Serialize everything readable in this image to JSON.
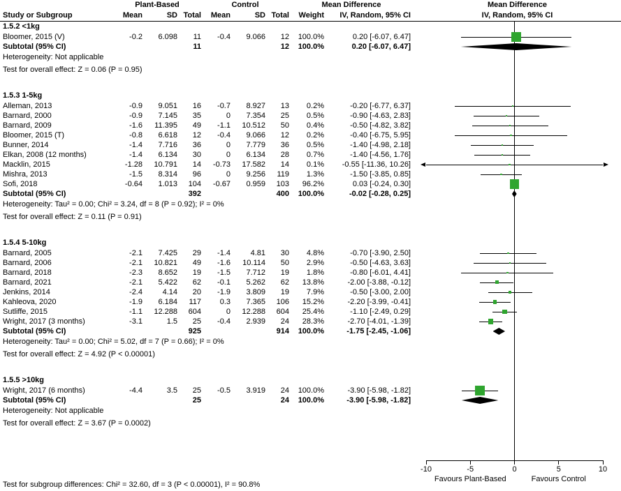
{
  "header": {
    "col_study": "Study or Subgroup",
    "group1": "Plant-Based",
    "group2": "Control",
    "col_mean": "Mean",
    "col_sd": "SD",
    "col_total": "Total",
    "col_weight": "Weight",
    "md_label": "Mean Difference",
    "ci_method": "IV, Random, 95% CI"
  },
  "labels": {
    "subtotal": "Subtotal (95% CI)"
  },
  "axis": {
    "tick_labels": [
      "-10",
      "-5",
      "0",
      "5",
      "10"
    ],
    "left_label": "Favours Plant-Based",
    "right_label": "Favours Control"
  },
  "footer": {
    "subgroup_test": "Test for subgroup differences: Chi² = 32.60, df = 3 (P < 0.00001), I² = 90.8%"
  },
  "colors": {
    "marker": "#2FA52F",
    "diamond": "#000000",
    "line": "#000000"
  },
  "chart_data": {
    "type": "forest",
    "effect_measure": "Mean Difference",
    "model": "IV, Random, 95% CI",
    "xlim": [
      -10,
      10
    ],
    "ticks": [
      -10,
      -5,
      0,
      5,
      10
    ],
    "groups": [
      {
        "label": "1.5.2 <1kg",
        "studies": [
          {
            "name": "Bloomer, 2015 (V)",
            "mean_t": "-0.2",
            "sd_t": "6.098",
            "n_t": "11",
            "mean_c": "-0.4",
            "sd_c": "9.066",
            "n_c": "12",
            "weight": "100.0%",
            "ci_text": "0.20 [-6.07, 6.47]",
            "est": 0.2,
            "lo": -6.07,
            "hi": 6.47
          }
        ],
        "subtotal": {
          "n_t": "11",
          "n_c": "12",
          "weight": "100.0%",
          "ci_text": "0.20 [-6.07, 6.47]",
          "est": 0.2,
          "lo": -6.07,
          "hi": 6.47
        },
        "heterogeneity": "Heterogeneity: Not applicable",
        "overall_effect": "Test for overall effect: Z = 0.06 (P = 0.95)"
      },
      {
        "label": "1.5.3 1-5kg",
        "studies": [
          {
            "name": "Alleman, 2013",
            "mean_t": "-0.9",
            "sd_t": "9.051",
            "n_t": "16",
            "mean_c": "-0.7",
            "sd_c": "8.927",
            "n_c": "13",
            "weight": "0.2%",
            "ci_text": "-0.20 [-6.77, 6.37]",
            "est": -0.2,
            "lo": -6.77,
            "hi": 6.37
          },
          {
            "name": "Barnard, 2000",
            "mean_t": "-0.9",
            "sd_t": "7.145",
            "n_t": "35",
            "mean_c": "0",
            "sd_c": "7.354",
            "n_c": "25",
            "weight": "0.5%",
            "ci_text": "-0.90 [-4.63, 2.83]",
            "est": -0.9,
            "lo": -4.63,
            "hi": 2.83
          },
          {
            "name": "Barnard, 2009",
            "mean_t": "-1.6",
            "sd_t": "11.395",
            "n_t": "49",
            "mean_c": "-1.1",
            "sd_c": "10.512",
            "n_c": "50",
            "weight": "0.4%",
            "ci_text": "-0.50 [-4.82, 3.82]",
            "est": -0.5,
            "lo": -4.82,
            "hi": 3.82
          },
          {
            "name": "Bloomer, 2015 (T)",
            "mean_t": "-0.8",
            "sd_t": "6.618",
            "n_t": "12",
            "mean_c": "-0.4",
            "sd_c": "9.066",
            "n_c": "12",
            "weight": "0.2%",
            "ci_text": "-0.40 [-6.75, 5.95]",
            "est": -0.4,
            "lo": -6.75,
            "hi": 5.95
          },
          {
            "name": "Bunner, 2014",
            "mean_t": "-1.4",
            "sd_t": "7.716",
            "n_t": "36",
            "mean_c": "0",
            "sd_c": "7.779",
            "n_c": "36",
            "weight": "0.5%",
            "ci_text": "-1.40 [-4.98, 2.18]",
            "est": -1.4,
            "lo": -4.98,
            "hi": 2.18
          },
          {
            "name": "Elkan, 2008 (12 months)",
            "mean_t": "-1.4",
            "sd_t": "6.134",
            "n_t": "30",
            "mean_c": "0",
            "sd_c": "6.134",
            "n_c": "28",
            "weight": "0.7%",
            "ci_text": "-1.40 [-4.56, 1.76]",
            "est": -1.4,
            "lo": -4.56,
            "hi": 1.76
          },
          {
            "name": "Macklin, 2015",
            "mean_t": "-1.28",
            "sd_t": "10.791",
            "n_t": "14",
            "mean_c": "-0.73",
            "sd_c": "17.582",
            "n_c": "14",
            "weight": "0.1%",
            "ci_text": "-0.55 [-11.36, 10.26]",
            "est": -0.55,
            "lo": -11.36,
            "hi": 10.26
          },
          {
            "name": "Mishra, 2013",
            "mean_t": "-1.5",
            "sd_t": "8.314",
            "n_t": "96",
            "mean_c": "0",
            "sd_c": "9.256",
            "n_c": "119",
            "weight": "1.3%",
            "ci_text": "-1.50 [-3.85, 0.85]",
            "est": -1.5,
            "lo": -3.85,
            "hi": 0.85
          },
          {
            "name": "Sofi, 2018",
            "mean_t": "-0.64",
            "sd_t": "1.013",
            "n_t": "104",
            "mean_c": "-0.67",
            "sd_c": "0.959",
            "n_c": "103",
            "weight": "96.2%",
            "ci_text": "0.03 [-0.24, 0.30]",
            "est": 0.03,
            "lo": -0.24,
            "hi": 0.3
          }
        ],
        "subtotal": {
          "n_t": "392",
          "n_c": "400",
          "weight": "100.0%",
          "ci_text": "-0.02 [-0.28, 0.25]",
          "est": -0.02,
          "lo": -0.28,
          "hi": 0.25
        },
        "heterogeneity": "Heterogeneity: Tau² = 0.00; Chi² = 3.24, df = 8 (P = 0.92); I² = 0%",
        "overall_effect": "Test for overall effect: Z = 0.11 (P = 0.91)"
      },
      {
        "label": "1.5.4 5-10kg",
        "studies": [
          {
            "name": "Barnard, 2005",
            "mean_t": "-2.1",
            "sd_t": "7.425",
            "n_t": "29",
            "mean_c": "-1.4",
            "sd_c": "4.81",
            "n_c": "30",
            "weight": "4.8%",
            "ci_text": "-0.70 [-3.90, 2.50]",
            "est": -0.7,
            "lo": -3.9,
            "hi": 2.5
          },
          {
            "name": "Barnard, 2006",
            "mean_t": "-2.1",
            "sd_t": "10.821",
            "n_t": "49",
            "mean_c": "-1.6",
            "sd_c": "10.114",
            "n_c": "50",
            "weight": "2.9%",
            "ci_text": "-0.50 [-4.63, 3.63]",
            "est": -0.5,
            "lo": -4.63,
            "hi": 3.63
          },
          {
            "name": "Barnard, 2018",
            "mean_t": "-2.3",
            "sd_t": "8.652",
            "n_t": "19",
            "mean_c": "-1.5",
            "sd_c": "7.712",
            "n_c": "19",
            "weight": "1.8%",
            "ci_text": "-0.80 [-6.01, 4.41]",
            "est": -0.8,
            "lo": -6.01,
            "hi": 4.41
          },
          {
            "name": "Barnard, 2021",
            "mean_t": "-2.1",
            "sd_t": "5.422",
            "n_t": "62",
            "mean_c": "-0.1",
            "sd_c": "5.262",
            "n_c": "62",
            "weight": "13.8%",
            "ci_text": "-2.00 [-3.88, -0.12]",
            "est": -2.0,
            "lo": -3.88,
            "hi": -0.12
          },
          {
            "name": "Jenkins, 2014",
            "mean_t": "-2.4",
            "sd_t": "4.14",
            "n_t": "20",
            "mean_c": "-1.9",
            "sd_c": "3.809",
            "n_c": "19",
            "weight": "7.9%",
            "ci_text": "-0.50 [-3.00, 2.00]",
            "est": -0.5,
            "lo": -3.0,
            "hi": 2.0
          },
          {
            "name": "Kahleova, 2020",
            "mean_t": "-1.9",
            "sd_t": "6.184",
            "n_t": "117",
            "mean_c": "0.3",
            "sd_c": "7.365",
            "n_c": "106",
            "weight": "15.2%",
            "ci_text": "-2.20 [-3.99, -0.41]",
            "est": -2.2,
            "lo": -3.99,
            "hi": -0.41
          },
          {
            "name": "Sutliffe, 2015",
            "mean_t": "-1.1",
            "sd_t": "12.288",
            "n_t": "604",
            "mean_c": "0",
            "sd_c": "12.288",
            "n_c": "604",
            "weight": "25.4%",
            "ci_text": "-1.10 [-2.49, 0.29]",
            "est": -1.1,
            "lo": -2.49,
            "hi": 0.29
          },
          {
            "name": "Wright, 2017 (3 months)",
            "mean_t": "-3.1",
            "sd_t": "1.5",
            "n_t": "25",
            "mean_c": "-0.4",
            "sd_c": "2.939",
            "n_c": "24",
            "weight": "28.3%",
            "ci_text": "-2.70 [-4.01, -1.39]",
            "est": -2.7,
            "lo": -4.01,
            "hi": -1.39
          }
        ],
        "subtotal": {
          "n_t": "925",
          "n_c": "914",
          "weight": "100.0%",
          "ci_text": "-1.75 [-2.45, -1.06]",
          "est": -1.75,
          "lo": -2.45,
          "hi": -1.06
        },
        "heterogeneity": "Heterogeneity: Tau² = 0.00; Chi² = 5.02, df = 7 (P = 0.66); I² = 0%",
        "overall_effect": "Test for overall effect: Z = 4.92 (P < 0.00001)"
      },
      {
        "label": "1.5.5 >10kg",
        "studies": [
          {
            "name": "Wright, 2017 (6 months)",
            "mean_t": "-4.4",
            "sd_t": "3.5",
            "n_t": "25",
            "mean_c": "-0.5",
            "sd_c": "3.919",
            "n_c": "24",
            "weight": "100.0%",
            "ci_text": "-3.90 [-5.98, -1.82]",
            "est": -3.9,
            "lo": -5.98,
            "hi": -1.82
          }
        ],
        "subtotal": {
          "n_t": "25",
          "n_c": "24",
          "weight": "100.0%",
          "ci_text": "-3.90 [-5.98, -1.82]",
          "est": -3.9,
          "lo": -5.98,
          "hi": -1.82
        },
        "heterogeneity": "Heterogeneity: Not applicable",
        "overall_effect": "Test for overall effect: Z = 3.67 (P = 0.0002)"
      }
    ]
  }
}
